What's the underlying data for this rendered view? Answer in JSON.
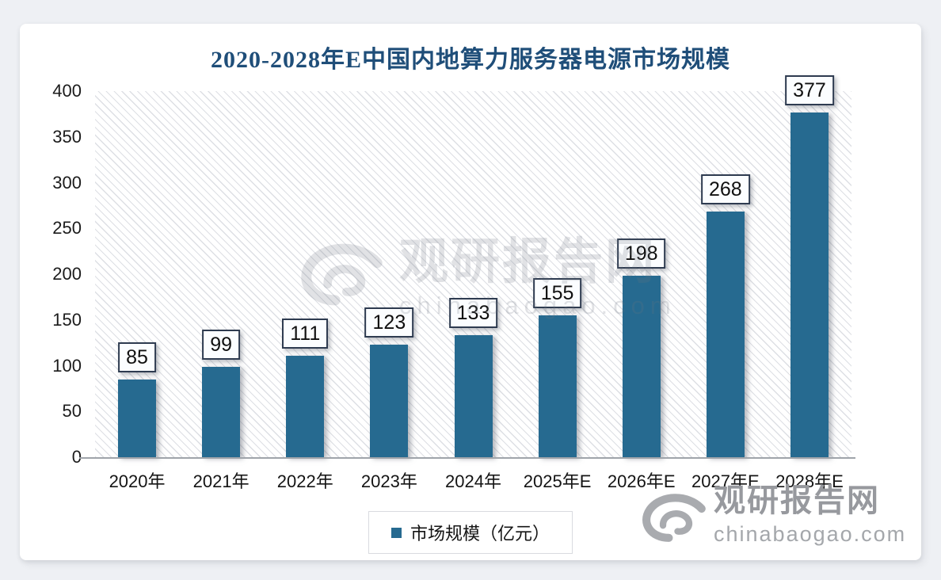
{
  "chart_data": {
    "type": "bar",
    "title": "2020-2028年E中国内地算力服务器电源市场规模",
    "categories": [
      "2020年",
      "2021年",
      "2022年",
      "2023年",
      "2024年",
      "2025年E",
      "2026年E",
      "2027年E",
      "2028年E"
    ],
    "series": [
      {
        "name": "市场规模（亿元）",
        "values": [
          85,
          99,
          111,
          123,
          133,
          155,
          198,
          268,
          377
        ]
      }
    ],
    "data_labels": [
      "85",
      "99",
      "111",
      "123",
      "133",
      "155",
      "198",
      "268",
      "377"
    ],
    "xlabel": "",
    "ylabel": "",
    "ylim": [
      0,
      400
    ],
    "yticks": [
      0,
      50,
      100,
      150,
      200,
      250,
      300,
      350,
      400
    ],
    "grid": false,
    "legend_position": "bottom",
    "plot_background": "light-diagonal-hatch",
    "colors": {
      "bar": "#266A90",
      "title": "#1F4E79",
      "label_box_border": "#2E3B50",
      "axis_line": "#9FA4AA"
    }
  },
  "legend": {
    "label": "市场规模（亿元）"
  },
  "watermarks": {
    "center": {
      "brand": "观研报告网",
      "domain": "chinabaogao.com"
    },
    "corner": {
      "brand": "观研报告网",
      "domain": "chinabaogao.com"
    }
  }
}
